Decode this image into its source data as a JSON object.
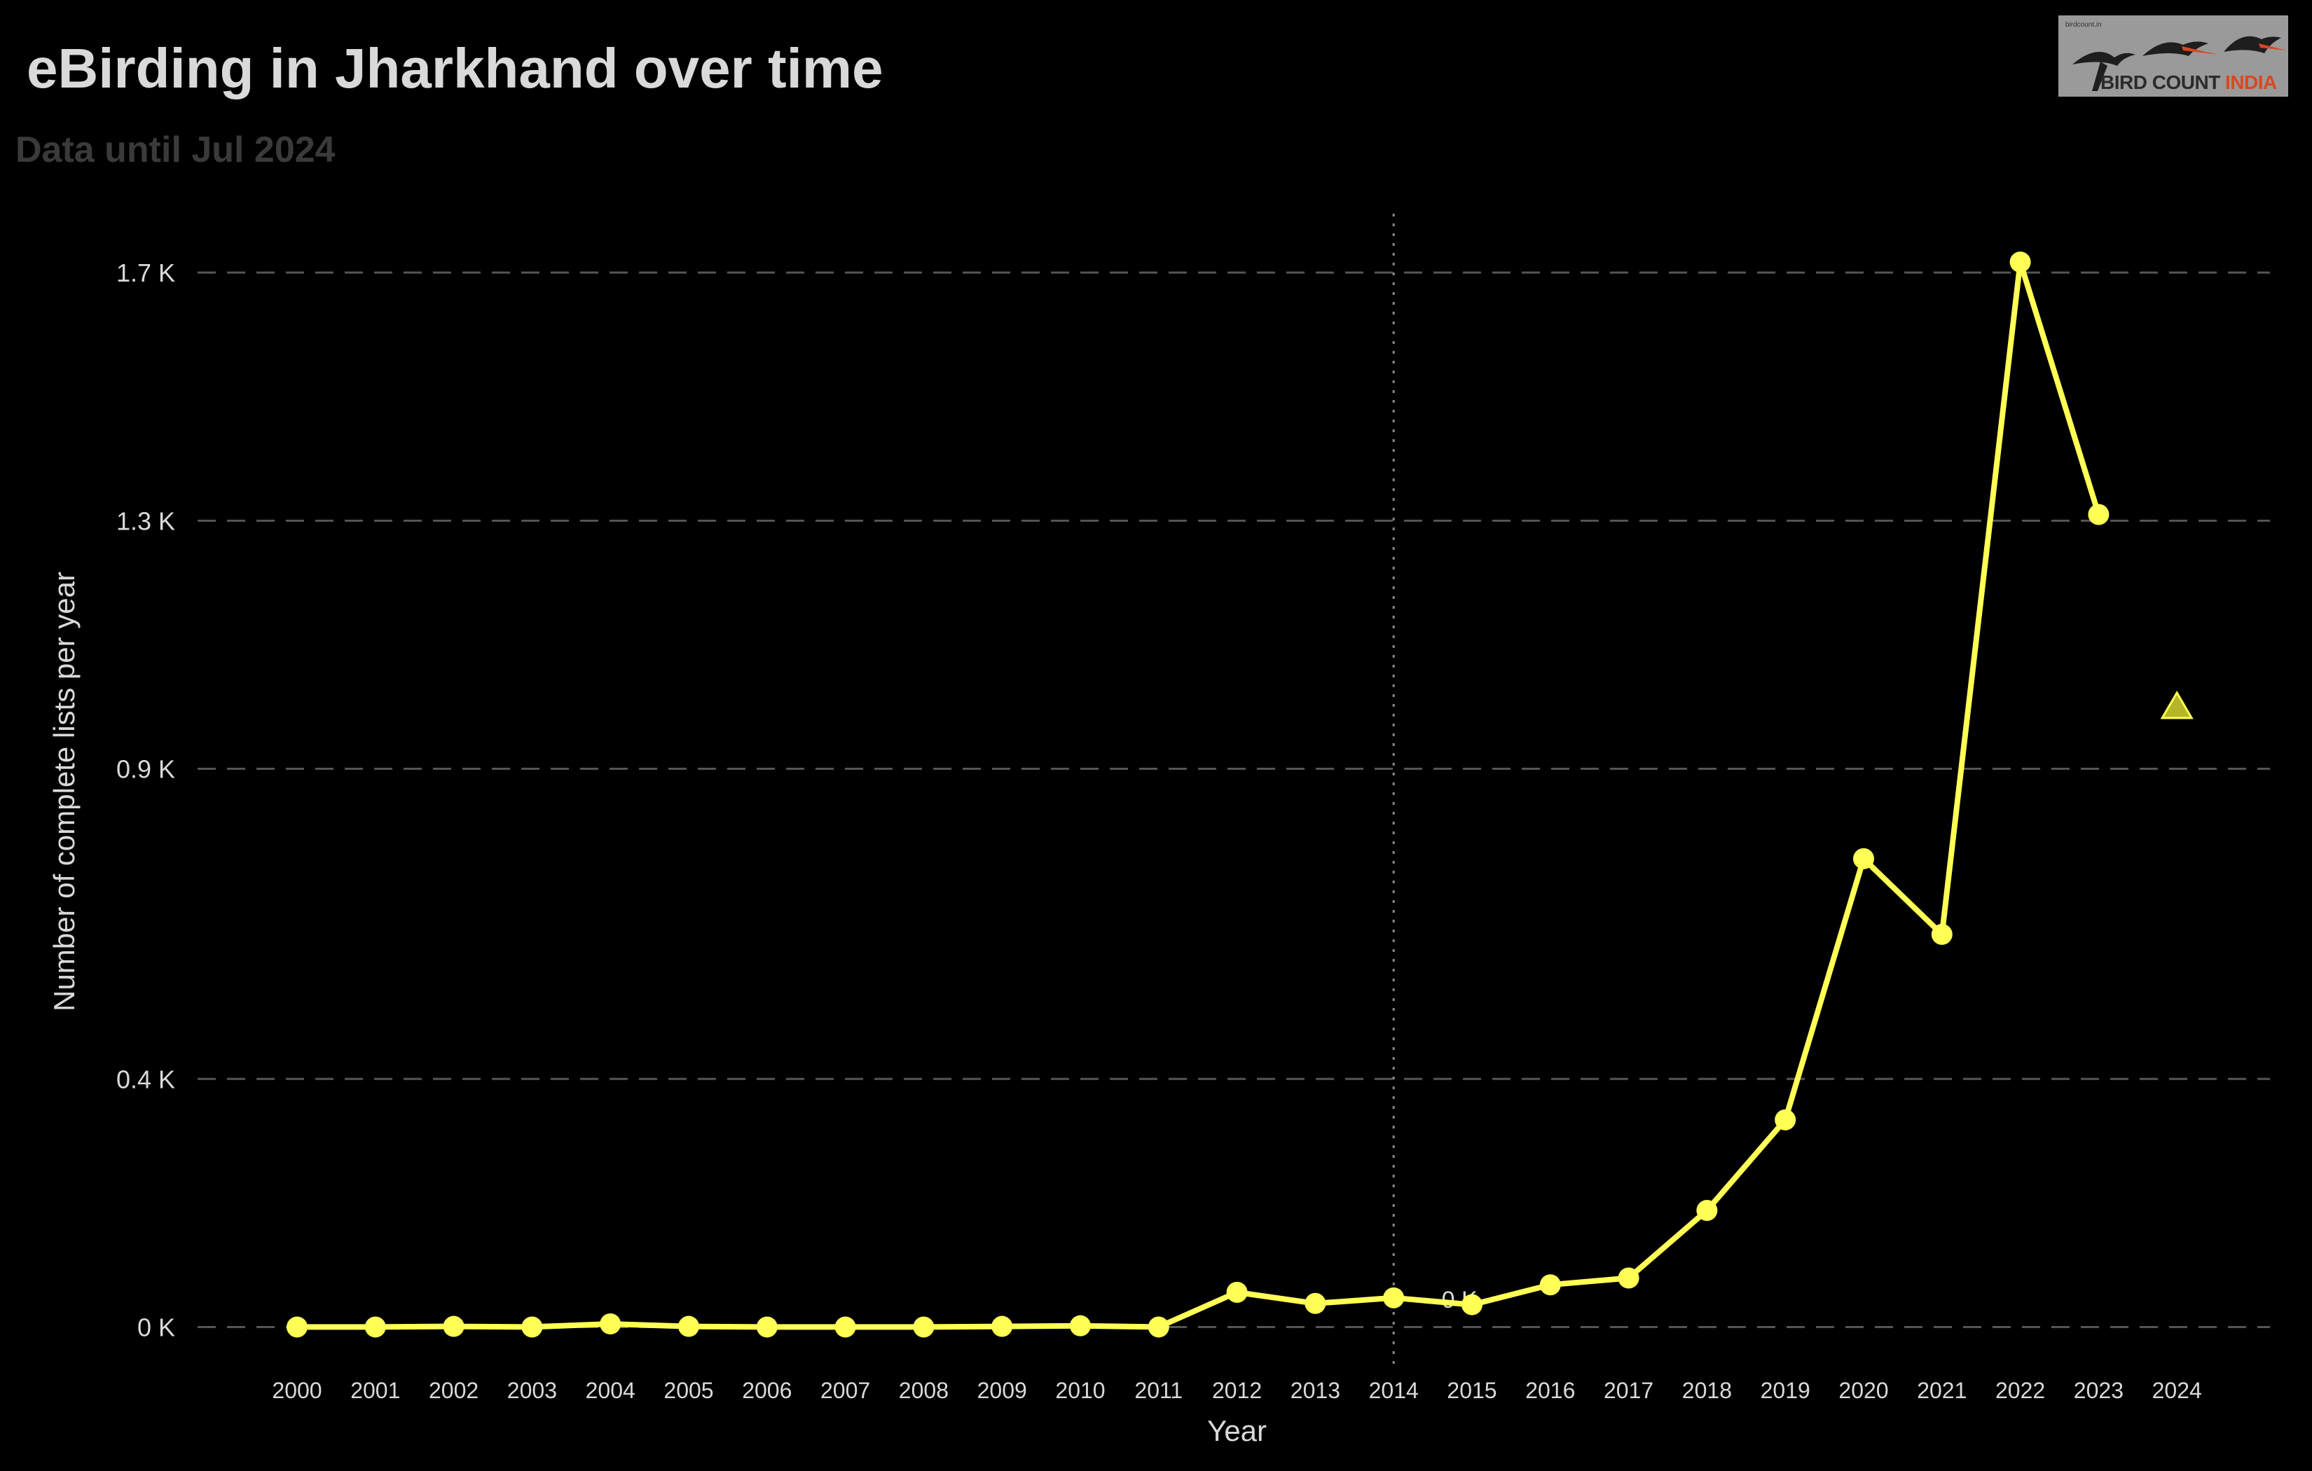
{
  "header": {
    "title": "eBirding in Jharkhand over time",
    "subtitle": "Data until Jul 2024"
  },
  "logo": {
    "small_text": "birdcount.in",
    "text_main": "BIRD COUNT ",
    "text_accent": "INDIA",
    "icon": "flying-birds-icon"
  },
  "colors": {
    "background": "#000000",
    "line": "#ffff55",
    "marker": "#ffff55",
    "projection_marker": "#b5b52a",
    "grid": "#555555",
    "text": "#d9d9d9",
    "subtitle": "#3a3a3a",
    "logo_accent": "#d9481f"
  },
  "chart_data": {
    "type": "line",
    "title": "eBirding in Jharkhand over time",
    "subtitle": "Data until Jul 2024",
    "xlabel": "Year",
    "ylabel": "Number of complete lists per year",
    "x": [
      "2000",
      "2001",
      "2002",
      "2003",
      "2004",
      "2005",
      "2006",
      "2007",
      "2008",
      "2009",
      "2010",
      "2011",
      "2012",
      "2013",
      "2014",
      "2015",
      "2016",
      "2017",
      "2018",
      "2019",
      "2020",
      "2021",
      "2022",
      "2023"
    ],
    "series": [
      {
        "name": "",
        "values": [
          0,
          0,
          1,
          0,
          5,
          1,
          0,
          0,
          0,
          1,
          2,
          0,
          56,
          38,
          47,
          36,
          68,
          79,
          188,
          334,
          755,
          633,
          1717,
          1310
        ]
      }
    ],
    "projection": {
      "x": "2024",
      "value": 1000,
      "marker": "triangle"
    },
    "all_x_ticks": [
      "2000",
      "2001",
      "2002",
      "2003",
      "2004",
      "2005",
      "2006",
      "2007",
      "2008",
      "2009",
      "2010",
      "2011",
      "2012",
      "2013",
      "2014",
      "2015",
      "2016",
      "2017",
      "2018",
      "2019",
      "2020",
      "2021",
      "2022",
      "2023",
      "2024"
    ],
    "y_ticks": [
      {
        "value": 0,
        "label": "0 K"
      },
      {
        "value": 400,
        "label": "0.4 K"
      },
      {
        "value": 900,
        "label": "0.9 K"
      },
      {
        "value": 1300,
        "label": "1.3 K"
      },
      {
        "value": 1700,
        "label": "1.7 K"
      }
    ],
    "ylim": [
      -65,
      1795
    ],
    "reference_line": {
      "x": "2014",
      "style": "dotted"
    },
    "annotation": {
      "text": "0 K",
      "x": "2014",
      "value": 47
    },
    "grid": "horizontal-dashed",
    "legend": "none"
  }
}
